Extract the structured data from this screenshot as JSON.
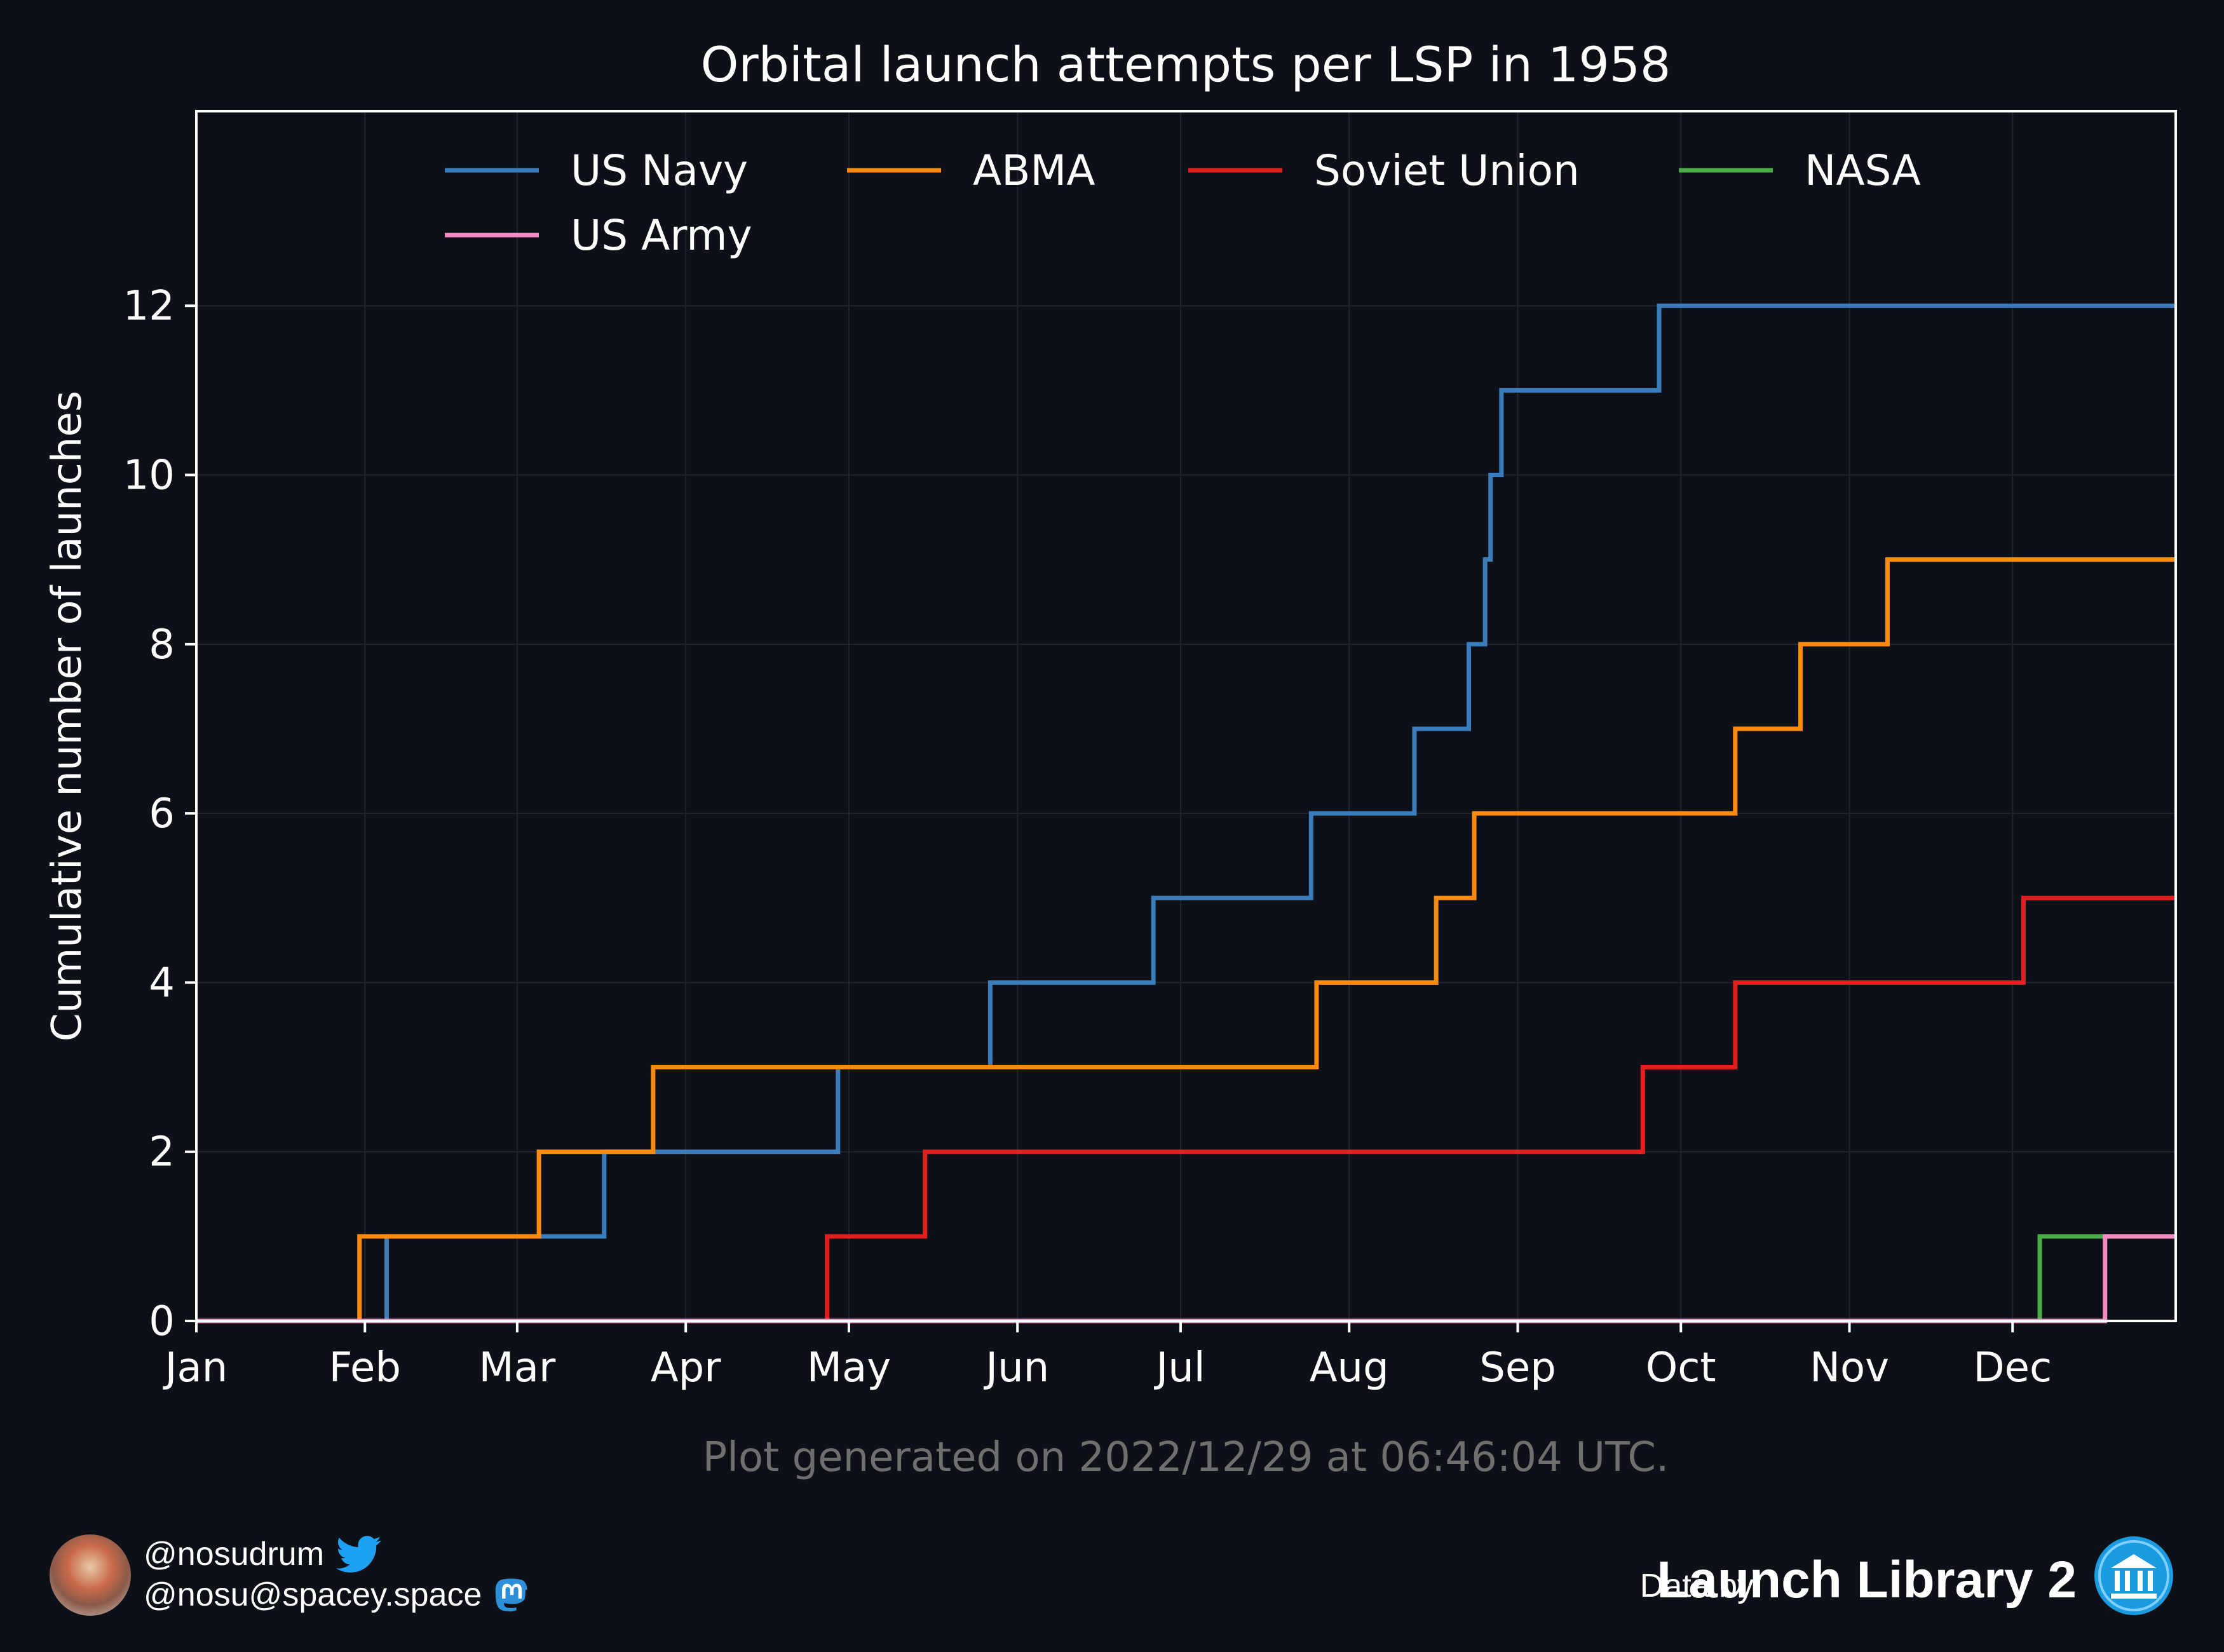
{
  "chart_data": {
    "type": "line",
    "step": true,
    "title": "Orbital launch attempts per LSP in 1958",
    "xlabel": "",
    "ylabel": "Cumulative number of launches",
    "x_ticks": [
      "Jan",
      "Feb",
      "Mar",
      "Apr",
      "May",
      "Jun",
      "Jul",
      "Aug",
      "Sep",
      "Oct",
      "Nov",
      "Dec"
    ],
    "y_ticks": [
      0,
      2,
      4,
      6,
      8,
      10,
      12
    ],
    "xlim": [
      "1958-01-01",
      "1958-12-31"
    ],
    "ylim": [
      0,
      14.3
    ],
    "grid": true,
    "legend_position": "top",
    "series": [
      {
        "name": "US Navy",
        "color": "#3b7dbb",
        "points": [
          [
            "1958-01-01",
            0
          ],
          [
            "1958-02-05",
            1
          ],
          [
            "1958-03-17",
            2
          ],
          [
            "1958-04-29",
            3
          ],
          [
            "1958-05-27",
            4
          ],
          [
            "1958-06-26",
            5
          ],
          [
            "1958-07-25",
            6
          ],
          [
            "1958-08-13",
            7
          ],
          [
            "1958-08-23",
            8
          ],
          [
            "1958-08-26",
            9
          ],
          [
            "1958-08-27",
            10
          ],
          [
            "1958-08-29",
            11
          ],
          [
            "1958-09-27",
            12
          ],
          [
            "1958-12-31",
            12
          ]
        ]
      },
      {
        "name": "ABMA",
        "color": "#ff8a10",
        "points": [
          [
            "1958-01-01",
            0
          ],
          [
            "1958-01-31",
            1
          ],
          [
            "1958-03-05",
            2
          ],
          [
            "1958-03-26",
            3
          ],
          [
            "1958-07-26",
            4
          ],
          [
            "1958-08-17",
            5
          ],
          [
            "1958-08-24",
            6
          ],
          [
            "1958-10-11",
            7
          ],
          [
            "1958-10-23",
            8
          ],
          [
            "1958-11-08",
            9
          ],
          [
            "1958-12-31",
            9
          ]
        ]
      },
      {
        "name": "Soviet Union",
        "color": "#e0201e",
        "points": [
          [
            "1958-01-01",
            0
          ],
          [
            "1958-04-27",
            1
          ],
          [
            "1958-05-15",
            2
          ],
          [
            "1958-09-24",
            3
          ],
          [
            "1958-10-11",
            4
          ],
          [
            "1958-12-03",
            5
          ],
          [
            "1958-12-31",
            5
          ]
        ]
      },
      {
        "name": "NASA",
        "color": "#4aab48",
        "points": [
          [
            "1958-01-01",
            0
          ],
          [
            "1958-12-06",
            1
          ],
          [
            "1958-12-31",
            1
          ]
        ]
      },
      {
        "name": "US Army",
        "color": "#f68ac2",
        "points": [
          [
            "1958-01-01",
            0
          ],
          [
            "1958-12-18",
            1
          ],
          [
            "1958-12-31",
            1
          ]
        ]
      }
    ],
    "annotation": "Plot generated on 2022/12/29 at 06:46:04 UTC."
  },
  "footer": {
    "twitter_handle": "@nosudrum",
    "mastodon_handle": "@nosu@spacey.space",
    "data_by": "Data by",
    "source": "Launch Library 2",
    "icons": [
      "avatar",
      "twitter-bird-icon",
      "mastodon-icon",
      "launch-library-icon"
    ]
  },
  "colors": {
    "background": "#0d1017",
    "twitter_blue": "#1da1f2",
    "annotation_grey": "#6f6f6f"
  }
}
